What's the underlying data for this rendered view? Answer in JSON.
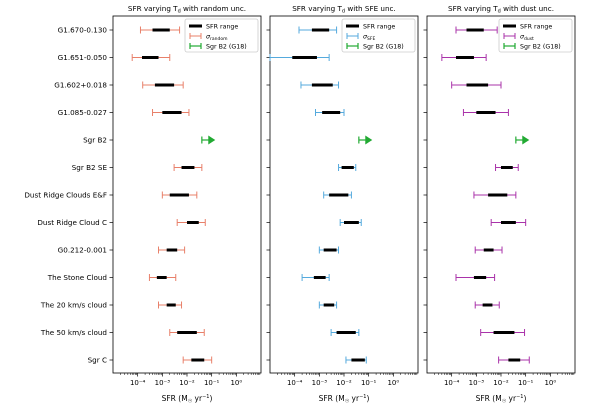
{
  "chart_data": [
    {
      "type": "errorbar",
      "title": "SFR varying T$_d$ with random unc.",
      "title_main": "SFR varying T",
      "title_sub": "d",
      "title_rest": " with random unc.",
      "xlabel": "SFR (M$_\\odot$ yr$^{-1}$)",
      "xlabel_text": "SFR (M",
      "xlabel_sun": "☉",
      "xlabel_tail": " yr",
      "xlabel_sup": "−1",
      "xlabel_close": ")",
      "xscale": "log",
      "xlim": [
        1e-05,
        10
      ],
      "xticks": [
        "10⁻⁴",
        "10⁻³",
        "10⁻²",
        "10⁻¹",
        "10⁰"
      ],
      "legend": {
        "placement": "top-right",
        "entries": [
          "SFR range",
          "σ",
          "random",
          "Sgr B2 (G18)"
        ]
      },
      "err_color": "#e8806a",
      "categories": [
        "G1.670-0.130",
        "G1.651-0.050",
        "G1.602+0.018",
        "G1.085-0.027",
        "Sgr B2",
        "Sgr B2 SE",
        "Dust Ridge Clouds E&F",
        "Dust Ridge Cloud C",
        "G0.212-0.001",
        "The Stone Cloud",
        "The 20 km/s cloud",
        "The 50 km/s cloud",
        "Sgr C"
      ],
      "range_lo": [
        0.0004,
        0.00015,
        0.0005,
        0.001,
        null,
        0.006,
        0.002,
        0.01,
        0.0015,
        0.0006,
        0.0015,
        0.004,
        0.015
      ],
      "range_hi": [
        0.002,
        0.0007,
        0.003,
        0.006,
        null,
        0.02,
        0.012,
        0.03,
        0.004,
        0.0015,
        0.0035,
        0.025,
        0.05
      ],
      "err_lo": [
        0.00013,
        6e-05,
        0.00016,
        0.0004,
        null,
        0.003,
        0.001,
        0.004,
        0.0007,
        0.0003,
        0.0007,
        0.002,
        0.007
      ],
      "err_hi": [
        0.005,
        0.002,
        0.007,
        0.012,
        null,
        0.04,
        0.025,
        0.055,
        0.008,
        0.0035,
        0.006,
        0.05,
        0.1
      ],
      "g18_point": {
        "category": "Sgr B2",
        "lo": 0.04,
        "hi": 0.08
      }
    },
    {
      "type": "errorbar",
      "title": "SFR varying T$_d$ with SFE unc.",
      "title_main": "SFR varying T",
      "title_sub": "d",
      "title_rest": " with SFE unc.",
      "xlabel": "SFR (M$_\\odot$ yr$^{-1}$)",
      "xlabel_text": "SFR (M",
      "xlabel_sun": "☉",
      "xlabel_tail": " yr",
      "xlabel_sup": "−1",
      "xlabel_close": ")",
      "xscale": "log",
      "xlim": [
        1e-05,
        10
      ],
      "xticks": [
        "10⁻⁴",
        "10⁻³",
        "10⁻²",
        "10⁻¹",
        "10⁰"
      ],
      "legend": {
        "placement": "top-right",
        "entries": [
          "SFR range",
          "σ",
          "SFE",
          "Sgr B2 (G18)"
        ]
      },
      "err_color": "#55aadd",
      "categories": [
        "G1.670-0.130",
        "G1.651-0.050",
        "G1.602+0.018",
        "G1.085-0.027",
        "Sgr B2",
        "Sgr B2 SE",
        "Dust Ridge Clouds E&F",
        "Dust Ridge Cloud C",
        "G0.212-0.001",
        "The Stone Cloud",
        "The 20 km/s cloud",
        "The 50 km/s cloud",
        "Sgr C"
      ],
      "range_lo": [
        0.0005,
        8e-05,
        0.0005,
        0.0013,
        null,
        0.008,
        0.0025,
        0.01,
        0.0015,
        0.0006,
        0.0015,
        0.005,
        0.02
      ],
      "range_hi": [
        0.0025,
        0.0008,
        0.0035,
        0.007,
        null,
        0.025,
        0.015,
        0.04,
        0.005,
        0.0018,
        0.004,
        0.03,
        0.07
      ],
      "err_lo": [
        0.00015,
        1e-05,
        0.00018,
        0.0007,
        null,
        0.006,
        0.0015,
        0.007,
        0.001,
        0.0002,
        0.001,
        0.003,
        0.012
      ],
      "err_hi": [
        0.005,
        0.0025,
        0.006,
        0.01,
        null,
        0.03,
        0.02,
        0.05,
        0.006,
        0.0025,
        0.005,
        0.04,
        0.08
      ],
      "g18_point": {
        "category": "Sgr B2",
        "lo": 0.04,
        "hi": 0.08
      }
    },
    {
      "type": "errorbar",
      "title": "SFR varying T$_d$ with dust unc.",
      "title_main": "SFR varying T",
      "title_sub": "d",
      "title_rest": " with dust unc.",
      "xlabel": "SFR (M$_\\odot$ yr$^{-1}$)",
      "xlabel_text": "SFR (M",
      "xlabel_sun": "☉",
      "xlabel_tail": " yr",
      "xlabel_sup": "−1",
      "xlabel_close": ")",
      "xscale": "log",
      "xlim": [
        1e-05,
        10
      ],
      "xticks": [
        "10⁻⁴",
        "10⁻³",
        "10⁻²",
        "10⁻¹",
        "10⁰"
      ],
      "legend": {
        "placement": "top-right",
        "entries": [
          "SFR range",
          "σ",
          "dust",
          "Sgr B2 (G18)"
        ]
      },
      "err_color": "#aa33aa",
      "categories": [
        "G1.670-0.130",
        "G1.651-0.050",
        "G1.602+0.018",
        "G1.085-0.027",
        "Sgr B2",
        "Sgr B2 SE",
        "Dust Ridge Clouds E&F",
        "Dust Ridge Cloud C",
        "G0.212-0.001",
        "The Stone Cloud",
        "The 20 km/s cloud",
        "The 50 km/s cloud",
        "Sgr C"
      ],
      "range_lo": [
        0.0004,
        0.00015,
        0.0004,
        0.001,
        null,
        0.01,
        0.003,
        0.01,
        0.002,
        0.0008,
        0.0018,
        0.005,
        0.02
      ],
      "range_hi": [
        0.002,
        0.0008,
        0.003,
        0.006,
        null,
        0.03,
        0.018,
        0.04,
        0.005,
        0.0025,
        0.0045,
        0.035,
        0.06
      ],
      "err_lo": [
        0.00015,
        4e-05,
        0.0001,
        0.0003,
        null,
        0.006,
        0.0008,
        0.004,
        0.0009,
        0.00015,
        0.0009,
        0.0015,
        0.008
      ],
      "err_hi": [
        0.007,
        0.0025,
        0.01,
        0.02,
        null,
        0.05,
        0.04,
        0.1,
        0.011,
        0.0055,
        0.0085,
        0.09,
        0.14
      ],
      "g18_point": {
        "category": "Sgr B2",
        "lo": 0.04,
        "hi": 0.08
      }
    }
  ],
  "colors": {
    "range": "#000000",
    "g18": "#22aa33"
  }
}
